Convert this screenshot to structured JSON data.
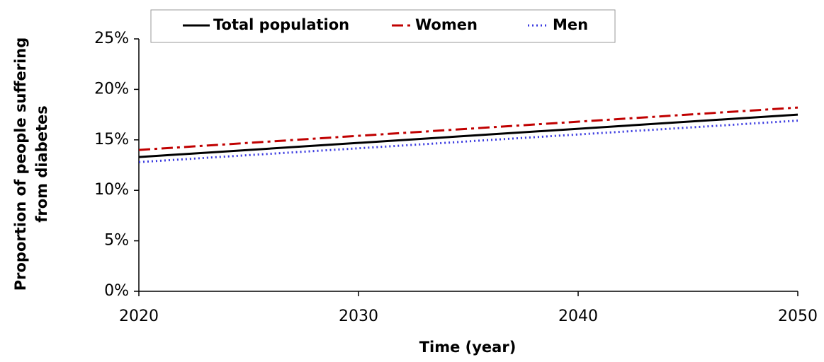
{
  "chart_data": {
    "type": "line",
    "xlabel": "Time (year)",
    "ylabel": [
      "Proportion of people suffering",
      "from diabetes"
    ],
    "x": [
      2020,
      2050
    ],
    "xlim": [
      2020,
      2050
    ],
    "xticks": [
      2020,
      2030,
      2040,
      2050
    ],
    "ylim": [
      0,
      25
    ],
    "yticks": [
      {
        "value": 0,
        "label": "0%"
      },
      {
        "value": 5,
        "label": "5%"
      },
      {
        "value": 10,
        "label": "10%"
      },
      {
        "value": 15,
        "label": "15%"
      },
      {
        "value": 20,
        "label": "20%"
      },
      {
        "value": 25,
        "label": "25%"
      }
    ],
    "grid": false,
    "legend": "top",
    "series": [
      {
        "name": "Total population",
        "color": "#000000",
        "linestyle": "solid",
        "values": [
          13.3,
          17.5
        ]
      },
      {
        "name": "Women",
        "color": "#c00000",
        "linestyle": "dashdot",
        "values": [
          14.0,
          18.2
        ]
      },
      {
        "name": "Men",
        "color": "#3a3ae0",
        "linestyle": "dotted",
        "values": [
          12.8,
          16.9
        ]
      }
    ]
  }
}
